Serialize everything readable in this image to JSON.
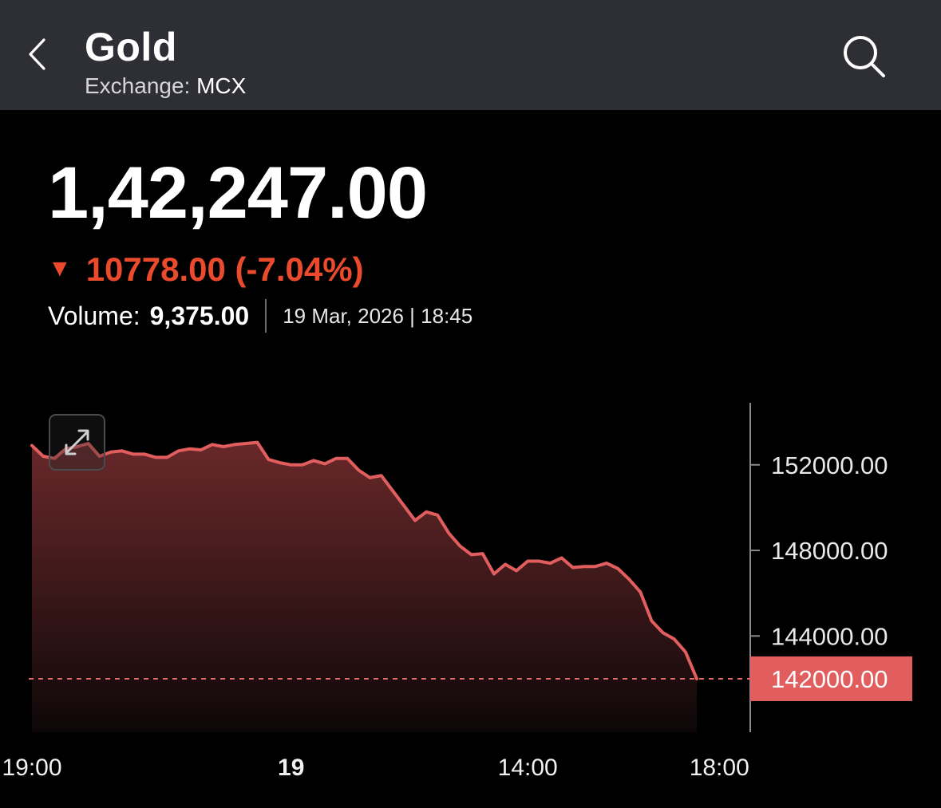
{
  "header": {
    "title": "Gold",
    "exchange_label": "Exchange:",
    "exchange_value": "MCX",
    "back_icon": "chevron-left-icon",
    "search_icon": "search-icon",
    "background": "#2e2e35"
  },
  "quote": {
    "price": "1,42,247.00",
    "change_arrow": "▼",
    "change": "10778.00 (-7.04%)",
    "change_color": "#ec4a2c",
    "volume_label": "Volume:",
    "volume_value": "9,375.00",
    "datetime": "19 Mar, 2026 | 18:45"
  },
  "chart_data": {
    "type": "area",
    "line_color": "#e25e5e",
    "y_ticks": [
      "152000.00",
      "148000.00",
      "144000.00"
    ],
    "current_label": "142000.00",
    "current_value": 142000,
    "ylim": [
      139500,
      154900
    ],
    "x_labels": [
      {
        "label": "19:00",
        "bold": false,
        "index": 0
      },
      {
        "label": "19",
        "bold": true,
        "index": 23
      },
      {
        "label": "14:00",
        "bold": false,
        "index": 44
      },
      {
        "label": "18:00",
        "bold": false,
        "index": 61
      }
    ],
    "values": [
      152900,
      152400,
      152300,
      152750,
      152850,
      153000,
      152400,
      152600,
      152650,
      152500,
      152500,
      152350,
      152350,
      152650,
      152750,
      152700,
      152950,
      152850,
      152950,
      153000,
      153050,
      152250,
      152100,
      152000,
      152000,
      152200,
      152050,
      152300,
      152300,
      151750,
      151400,
      151500,
      150800,
      150100,
      149400,
      149800,
      149650,
      148800,
      148200,
      147800,
      147850,
      146900,
      147350,
      147050,
      147500,
      147500,
      147400,
      147650,
      147200,
      147250,
      147250,
      147400,
      147150,
      146650,
      146050,
      144700,
      144150,
      143850,
      143250,
      142000
    ]
  }
}
